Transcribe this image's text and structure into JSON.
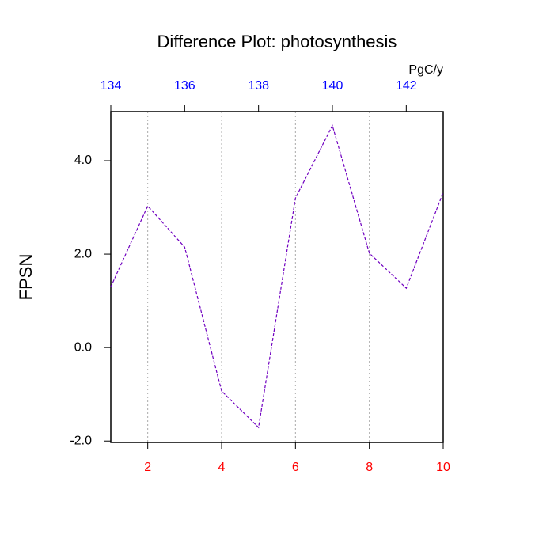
{
  "chart_data": {
    "type": "line",
    "title": "Difference Plot: photosynthesis",
    "ylabel": "FPSN",
    "x2label": "PgC/y",
    "x": [
      1,
      2,
      3,
      4,
      5,
      6,
      7,
      8,
      9,
      10
    ],
    "series": [
      {
        "color": "#7000c0",
        "values": [
          1.3,
          3.03,
          2.15,
          -0.93,
          -1.71,
          3.2,
          4.75,
          2.02,
          1.27,
          3.32
        ]
      }
    ],
    "xlim": [
      1,
      10
    ],
    "xticks": [
      2,
      4,
      6,
      8,
      10
    ],
    "xtick_color": "#ff0000",
    "x2lim": [
      134,
      143
    ],
    "x2ticks": [
      134,
      136,
      138,
      140,
      142
    ],
    "x2tick_color": "#0000ff",
    "ylim": [
      -2.03,
      5.05
    ],
    "yticks": [
      {
        "value": -2,
        "label": "-2.0"
      },
      {
        "value": 0,
        "label": "0.0"
      },
      {
        "value": 2,
        "label": "2.0"
      },
      {
        "value": 4,
        "label": "4.0"
      }
    ],
    "grid": true
  }
}
